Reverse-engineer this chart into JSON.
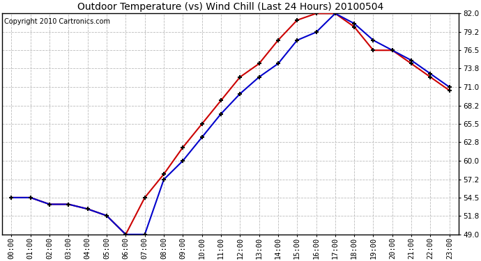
{
  "title": "Outdoor Temperature (vs) Wind Chill (Last 24 Hours) 20100504",
  "copyright": "Copyright 2010 Cartronics.com",
  "x_labels": [
    "00:00",
    "01:00",
    "02:00",
    "03:00",
    "04:00",
    "05:00",
    "06:00",
    "07:00",
    "08:00",
    "09:00",
    "10:00",
    "11:00",
    "12:00",
    "13:00",
    "14:00",
    "15:00",
    "16:00",
    "17:00",
    "18:00",
    "19:00",
    "20:00",
    "21:00",
    "22:00",
    "23:00"
  ],
  "temp_red": [
    54.5,
    54.5,
    53.5,
    53.5,
    52.8,
    51.8,
    49.0,
    54.5,
    58.0,
    62.0,
    65.5,
    69.0,
    72.5,
    74.5,
    78.0,
    81.0,
    82.0,
    82.0,
    80.0,
    76.5,
    76.5,
    74.5,
    72.5,
    70.5
  ],
  "wind_blue": [
    54.5,
    54.5,
    53.5,
    53.5,
    52.8,
    51.8,
    49.0,
    49.0,
    57.2,
    60.0,
    63.5,
    67.0,
    70.0,
    72.5,
    74.5,
    78.0,
    79.2,
    82.0,
    80.5,
    78.0,
    76.5,
    75.0,
    73.0,
    71.0
  ],
  "ylim": [
    49.0,
    82.0
  ],
  "yticks": [
    49.0,
    51.8,
    54.5,
    57.2,
    60.0,
    62.8,
    65.5,
    68.2,
    71.0,
    73.8,
    76.5,
    79.2,
    82.0
  ],
  "ytick_labels": [
    "49.0",
    "51.8",
    "54.5",
    "57.2",
    "60.0",
    "62.8",
    "65.5",
    "68.2",
    "71.0",
    "73.8",
    "76.5",
    "79.2",
    "82.0"
  ],
  "background_color": "#ffffff",
  "grid_color": "#bbbbbb",
  "red_color": "#cc0000",
  "blue_color": "#0000cc",
  "title_fontsize": 10,
  "copyright_fontsize": 7,
  "tick_fontsize": 7.5
}
